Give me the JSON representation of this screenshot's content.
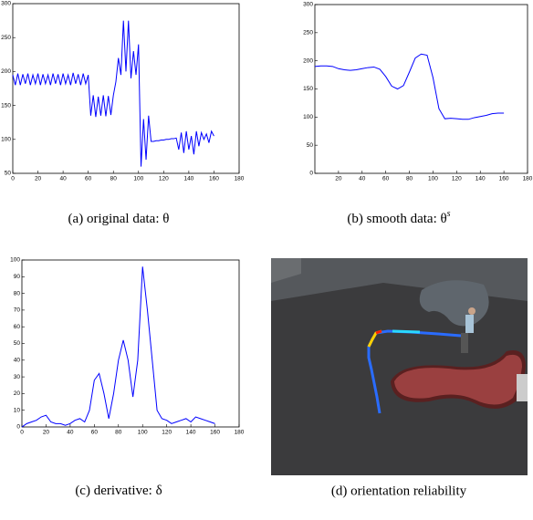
{
  "chart_data": [
    {
      "type": "line",
      "color": "#0000ff",
      "caption": "(a) original data: θ",
      "xlim": [
        0,
        180
      ],
      "ylim": [
        50,
        300
      ],
      "xticks": [
        0,
        20,
        40,
        60,
        80,
        100,
        120,
        140,
        160,
        180
      ],
      "yticks": [
        50,
        100,
        150,
        200,
        250,
        300
      ],
      "x": [
        0,
        2,
        4,
        6,
        8,
        10,
        12,
        14,
        16,
        18,
        20,
        22,
        24,
        26,
        28,
        30,
        32,
        34,
        36,
        38,
        40,
        42,
        44,
        46,
        48,
        50,
        52,
        54,
        56,
        58,
        60,
        62,
        64,
        66,
        68,
        70,
        72,
        74,
        76,
        78,
        80,
        82,
        84,
        86,
        88,
        90,
        92,
        94,
        96,
        98,
        100,
        102,
        104,
        106,
        108,
        110,
        112,
        114,
        116,
        118,
        120,
        122,
        124,
        126,
        128,
        130,
        132,
        134,
        136,
        138,
        140,
        142,
        144,
        146,
        148,
        150,
        152,
        154,
        156,
        158,
        160
      ],
      "values": [
        195,
        180,
        197,
        180,
        196,
        182,
        197,
        180,
        195,
        182,
        197,
        180,
        196,
        182,
        195,
        180,
        197,
        182,
        196,
        180,
        197,
        182,
        195,
        180,
        198,
        182,
        196,
        180,
        197,
        182,
        195,
        135,
        165,
        133,
        163,
        135,
        165,
        134,
        164,
        136,
        165,
        185,
        220,
        195,
        275,
        200,
        275,
        190,
        230,
        195,
        240,
        60,
        130,
        70,
        135,
        97,
        97,
        98,
        98,
        99,
        99,
        100,
        100,
        101,
        101,
        102,
        85,
        110,
        80,
        112,
        85,
        105,
        78,
        112,
        90,
        110,
        100,
        108,
        95,
        112,
        105
      ]
    },
    {
      "type": "line",
      "color": "#0000ff",
      "caption": "(b) smooth data: θ",
      "caption_sup": "s",
      "xlim": [
        0,
        180
      ],
      "ylim": [
        0,
        300
      ],
      "xticks": [
        20,
        40,
        60,
        80,
        100,
        120,
        140,
        160,
        180
      ],
      "yticks": [
        0,
        50,
        100,
        150,
        200,
        250,
        300
      ],
      "x": [
        0,
        5,
        10,
        15,
        20,
        25,
        30,
        35,
        40,
        45,
        50,
        55,
        60,
        65,
        70,
        75,
        80,
        85,
        90,
        95,
        100,
        105,
        110,
        115,
        120,
        125,
        130,
        135,
        140,
        145,
        150,
        155,
        160
      ],
      "values": [
        190,
        191,
        191,
        190,
        186,
        184,
        183,
        184,
        186,
        188,
        189,
        185,
        172,
        155,
        150,
        156,
        180,
        205,
        212,
        210,
        170,
        115,
        97,
        98,
        97,
        96,
        96,
        99,
        101,
        103,
        106,
        107,
        107
      ]
    },
    {
      "type": "line",
      "color": "#0000ff",
      "caption": "(c) derivative: δ",
      "xlim": [
        0,
        180
      ],
      "ylim": [
        0,
        100
      ],
      "xticks": [
        0,
        20,
        40,
        60,
        80,
        100,
        120,
        140,
        160,
        180
      ],
      "yticks": [
        0,
        10,
        20,
        30,
        40,
        50,
        60,
        70,
        80,
        90,
        100
      ],
      "x": [
        0,
        4,
        8,
        12,
        16,
        20,
        24,
        28,
        32,
        36,
        40,
        44,
        48,
        52,
        56,
        60,
        64,
        68,
        72,
        76,
        80,
        84,
        88,
        92,
        96,
        100,
        104,
        108,
        112,
        116,
        120,
        124,
        128,
        132,
        136,
        140,
        144,
        148,
        152,
        156,
        160
      ],
      "values": [
        0,
        2,
        3,
        4,
        6,
        7,
        3,
        2,
        2,
        1,
        2,
        4,
        5,
        3,
        10,
        28,
        32,
        20,
        5,
        20,
        40,
        52,
        40,
        18,
        40,
        96,
        70,
        40,
        10,
        5,
        4,
        2,
        3,
        4,
        5,
        3,
        6,
        5,
        4,
        3,
        2
      ]
    }
  ],
  "figure_d": {
    "caption": "(d) orientation reliability"
  }
}
